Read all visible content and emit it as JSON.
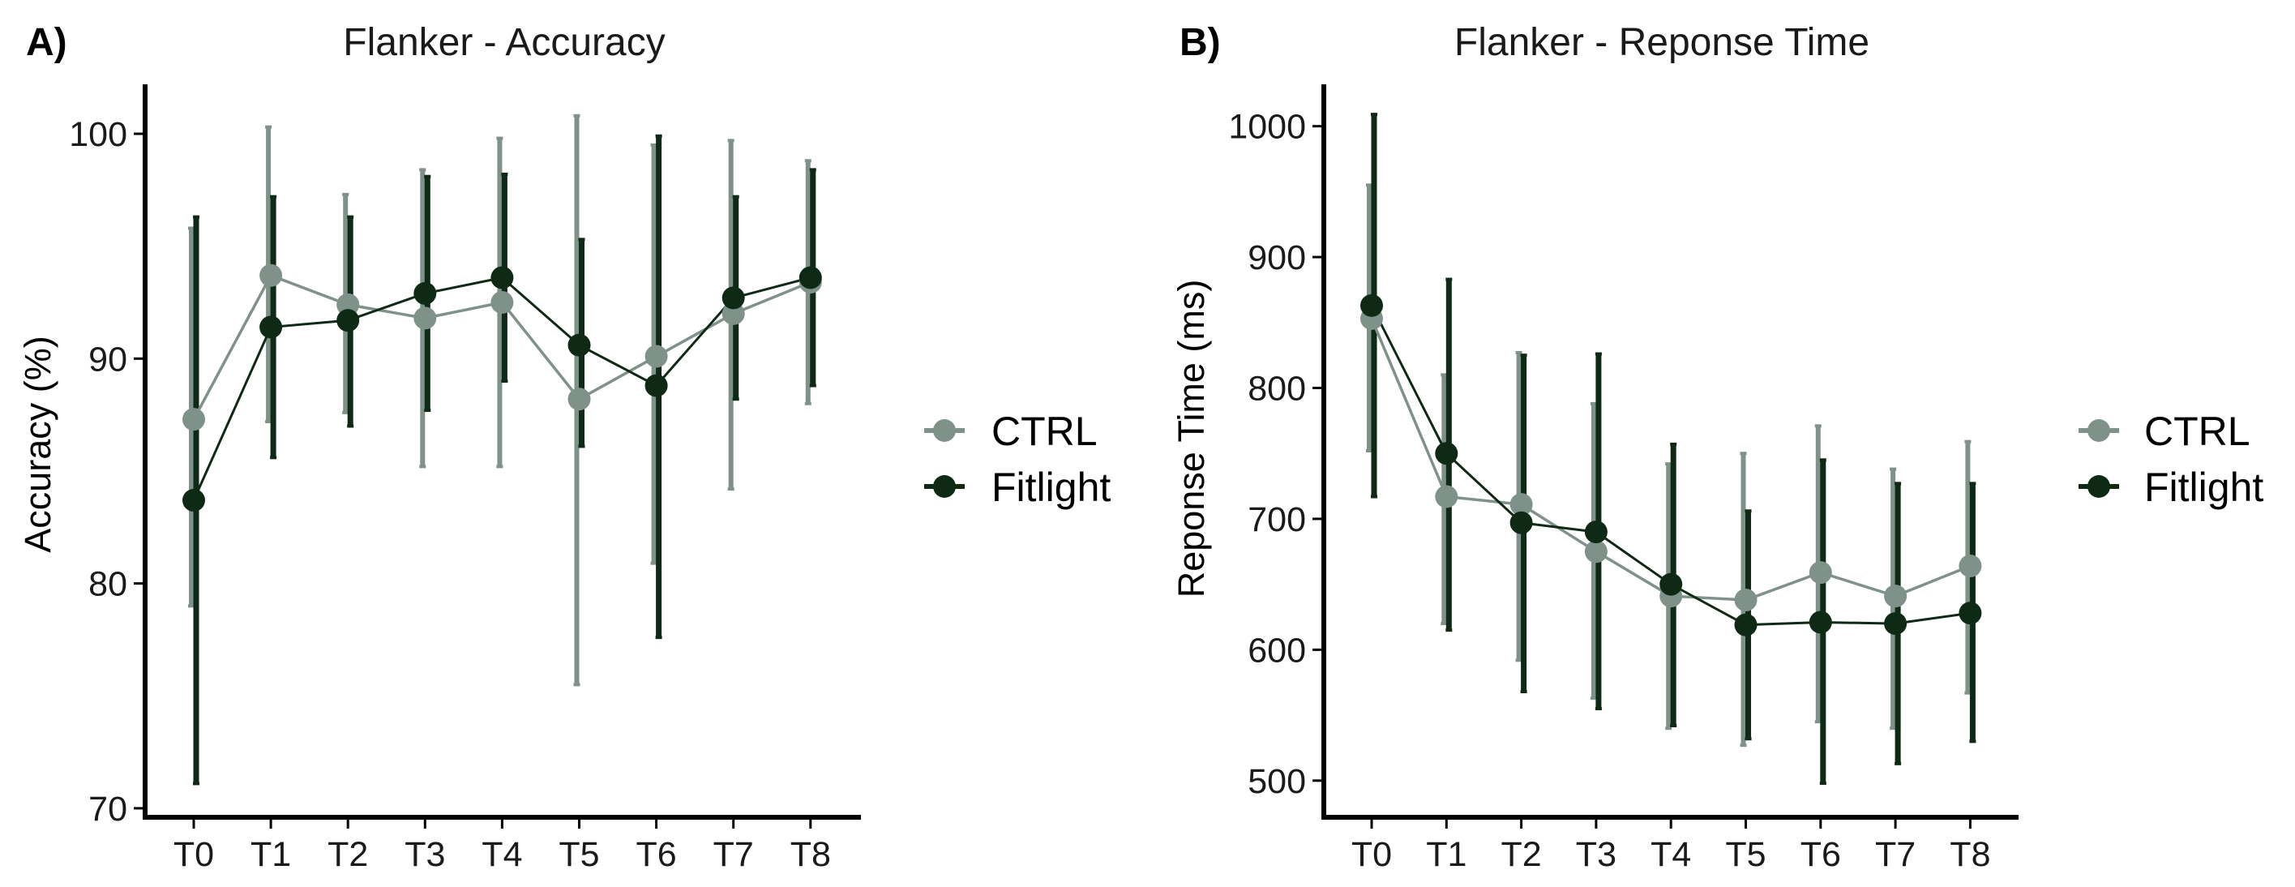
{
  "colors": {
    "ctrl": "#7e928a",
    "fitlight": "#0f2a14",
    "axis": "#000000"
  },
  "chart_data": [
    {
      "type": "line",
      "panel_letter": "A)",
      "title": "Flanker - Accuracy",
      "xlabel": "",
      "ylabel": "Accuracy (%)",
      "categories": [
        "T0",
        "T1",
        "T2",
        "T3",
        "T4",
        "T5",
        "T6",
        "T7",
        "T8"
      ],
      "yticks": [
        70,
        80,
        90,
        100
      ],
      "ytick_labels": [
        "70",
        "80",
        "90",
        "100"
      ],
      "ylim": [
        69.6,
        102.2
      ],
      "grid": false,
      "legend": {
        "position": "right",
        "entries": [
          "CTRL",
          "Fitlight"
        ]
      },
      "series": [
        {
          "name": "CTRL",
          "values": [
            87.3,
            93.7,
            92.4,
            91.8,
            92.5,
            88.2,
            90.1,
            92.0,
            93.4
          ],
          "err_low": [
            79.0,
            87.2,
            87.6,
            85.2,
            85.2,
            75.5,
            80.9,
            84.2,
            88.0
          ],
          "err_high": [
            95.8,
            100.3,
            97.3,
            98.4,
            99.8,
            100.8,
            99.5,
            99.7,
            98.8
          ]
        },
        {
          "name": "Fitlight",
          "values": [
            83.7,
            91.4,
            91.7,
            92.9,
            93.6,
            90.6,
            88.8,
            92.7,
            93.6
          ],
          "err_low": [
            71.1,
            85.6,
            87.0,
            87.7,
            89.0,
            86.1,
            77.6,
            88.2,
            88.8
          ],
          "err_high": [
            96.3,
            97.2,
            96.3,
            98.1,
            98.2,
            95.3,
            99.9,
            97.2,
            98.4
          ]
        }
      ]
    },
    {
      "type": "line",
      "panel_letter": "B)",
      "title": "Flanker - Reponse Time",
      "xlabel": "",
      "ylabel": "Reponse Time (ms)",
      "categories": [
        "T0",
        "T1",
        "T2",
        "T3",
        "T4",
        "T5",
        "T6",
        "T7",
        "T8"
      ],
      "yticks": [
        500,
        600,
        700,
        800,
        900,
        1000
      ],
      "ytick_labels": [
        "500",
        "600",
        "700",
        "800",
        "900",
        "1000"
      ],
      "ylim": [
        472,
        1032
      ],
      "grid": false,
      "legend": {
        "position": "right",
        "entries": [
          "CTRL",
          "Fitlight"
        ]
      },
      "series": [
        {
          "name": "CTRL",
          "values": [
            853,
            717,
            711,
            675,
            641,
            638,
            659,
            641,
            664
          ],
          "err_low": [
            752,
            620,
            592,
            563,
            540,
            527,
            545,
            540,
            567
          ],
          "err_high": [
            955,
            810,
            827,
            788,
            742,
            750,
            771,
            738,
            759
          ]
        },
        {
          "name": "Fitlight",
          "values": [
            863,
            750,
            697,
            690,
            650,
            619,
            621,
            620,
            628
          ],
          "err_low": [
            717,
            615,
            568,
            555,
            542,
            532,
            498,
            513,
            530
          ],
          "err_high": [
            1009,
            883,
            825,
            826,
            757,
            706,
            745,
            727,
            727
          ]
        }
      ]
    }
  ]
}
